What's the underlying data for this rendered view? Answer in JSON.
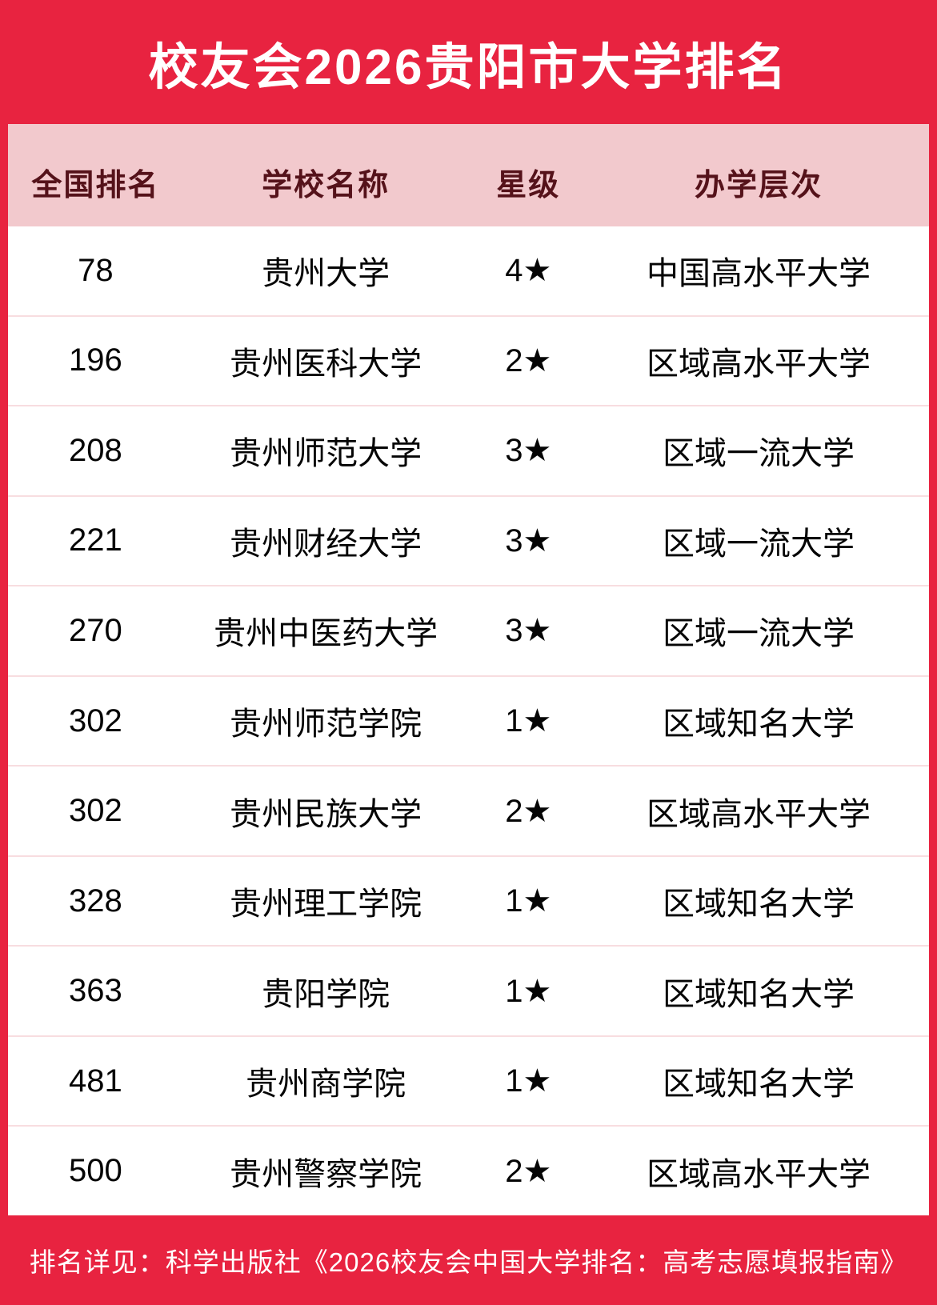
{
  "title": "校友会2026贵阳市大学排名",
  "colors": {
    "background_red": "#e82340",
    "header_pink": "#f2c9cd",
    "header_text_maroon": "#55121a",
    "row_separator_pink": "#f8dde0",
    "body_text": "#050505",
    "title_text": "#ffffff"
  },
  "table": {
    "columns": [
      "全国排名",
      "学校名称",
      "星级",
      "办学层次"
    ],
    "rows": [
      {
        "rank": "78",
        "school": "贵州大学",
        "stars": "4★",
        "level": "中国高水平大学"
      },
      {
        "rank": "196",
        "school": "贵州医科大学",
        "stars": "2★",
        "level": "区域高水平大学"
      },
      {
        "rank": "208",
        "school": "贵州师范大学",
        "stars": "3★",
        "level": "区域一流大学"
      },
      {
        "rank": "221",
        "school": "贵州财经大学",
        "stars": "3★",
        "level": "区域一流大学"
      },
      {
        "rank": "270",
        "school": "贵州中医药大学",
        "stars": "3★",
        "level": "区域一流大学"
      },
      {
        "rank": "302",
        "school": "贵州师范学院",
        "stars": "1★",
        "level": "区域知名大学"
      },
      {
        "rank": "302",
        "school": "贵州民族大学",
        "stars": "2★",
        "level": "区域高水平大学"
      },
      {
        "rank": "328",
        "school": "贵州理工学院",
        "stars": "1★",
        "level": "区域知名大学"
      },
      {
        "rank": "363",
        "school": "贵阳学院",
        "stars": "1★",
        "level": "区域知名大学"
      },
      {
        "rank": "481",
        "school": "贵州商学院",
        "stars": "1★",
        "level": "区域知名大学"
      },
      {
        "rank": "500",
        "school": "贵州警察学院",
        "stars": "2★",
        "level": "区域高水平大学"
      }
    ]
  },
  "footer": {
    "note": "排名详见：科学出版社《2026校友会中国大学排名：高考志愿填报指南》"
  }
}
